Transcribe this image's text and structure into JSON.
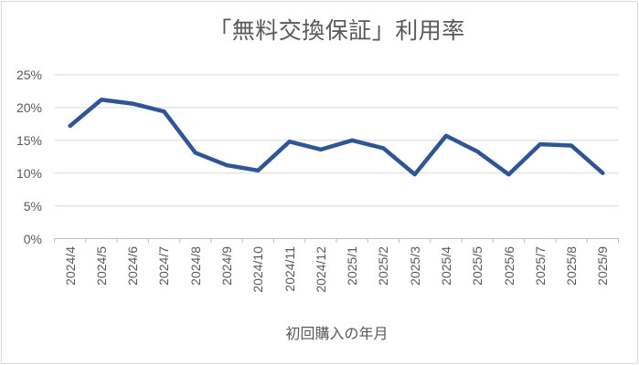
{
  "chart_data": {
    "type": "line",
    "title": "「無料交換保証」利用率",
    "xlabel": "初回購入の年月",
    "ylabel": "",
    "categories": [
      "2024/4",
      "2024/5",
      "2024/6",
      "2024/7",
      "2024/8",
      "2024/9",
      "2024/10",
      "2024/11",
      "2024/12",
      "2025/1",
      "2025/2",
      "2025/3",
      "2025/4",
      "2025/5",
      "2025/6",
      "2025/7",
      "2025/8",
      "2025/9"
    ],
    "values": [
      17.2,
      21.2,
      20.6,
      19.4,
      13.1,
      11.2,
      10.4,
      14.8,
      13.6,
      15.0,
      13.8,
      9.8,
      15.7,
      13.3,
      9.8,
      14.4,
      14.2,
      10.0
    ],
    "ylim": [
      0,
      25
    ],
    "yticks": [
      0,
      5,
      10,
      15,
      20,
      25
    ],
    "ytick_labels": [
      "0%",
      "5%",
      "10%",
      "15%",
      "20%",
      "25%"
    ],
    "grid": true,
    "legend": "none"
  },
  "colors": {
    "line": "#2F5597",
    "gridline": "#D9D9D9",
    "axis": "#BFBFBF",
    "text": "#595959",
    "frame_border": "#D9D9D9",
    "background": "#FFFFFF"
  }
}
